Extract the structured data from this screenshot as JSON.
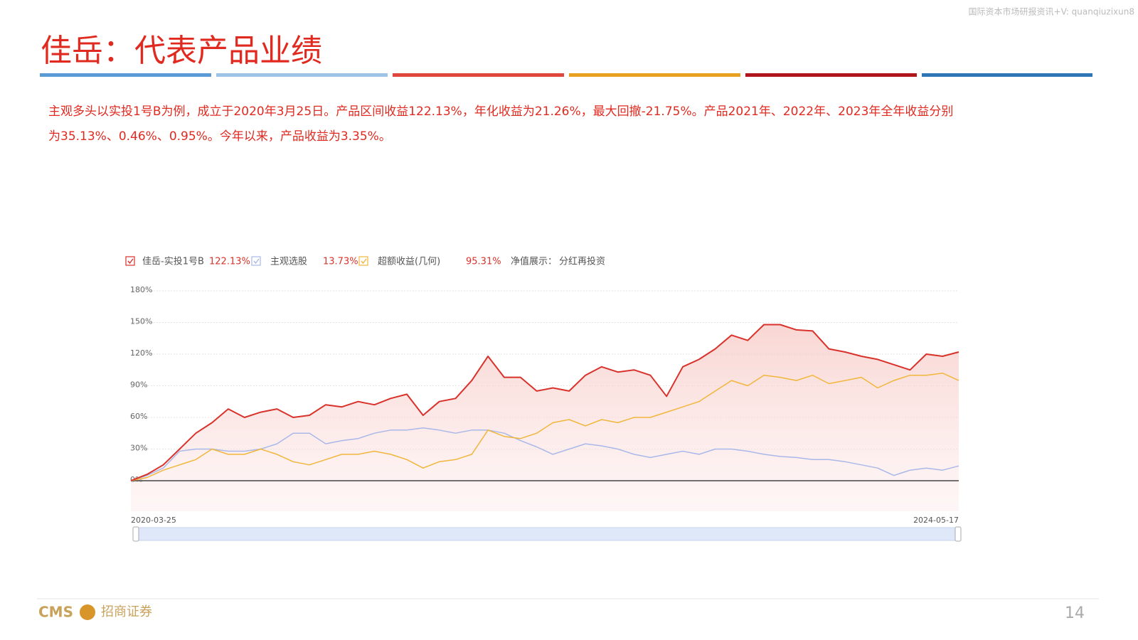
{
  "watermark": "国际资本市场研报资讯+V: quanqiuzixun8",
  "header": {
    "title": "佳岳：代表产品业绩"
  },
  "body": {
    "lines": [
      "主观多头以实投1号B为例，成立于2020年3月25日。产品区间收益122.13%，年化收益为21.26%，最大回撤-21.75%。产品2021年、2022年、2023年全年收益分别",
      "为35.13%、0.46%、0.95%。今年以来，产品收益为3.35%。"
    ]
  },
  "chart_data": {
    "type": "line",
    "categories": [
      "2020-03-25",
      null,
      null,
      null,
      null,
      null,
      null,
      null,
      null,
      null,
      null,
      null,
      null,
      null,
      null,
      null,
      null,
      null,
      null,
      null,
      null,
      null,
      null,
      null,
      null,
      null,
      null,
      null,
      null,
      null,
      null,
      null,
      null,
      null,
      null,
      null,
      null,
      null,
      null,
      null,
      null,
      null,
      null,
      null,
      null,
      null,
      null,
      null,
      null,
      null,
      null,
      "2024-05-17"
    ],
    "series": [
      {
        "name": "佳岳-实投1号B",
        "legend_label": "122.13%",
        "color": "#d9322b",
        "values": [
          0,
          6,
          15,
          30,
          45,
          55,
          68,
          60,
          65,
          68,
          60,
          62,
          72,
          70,
          75,
          72,
          78,
          82,
          62,
          75,
          78,
          95,
          118,
          98,
          98,
          85,
          88,
          85,
          100,
          108,
          103,
          105,
          100,
          80,
          108,
          115,
          125,
          138,
          133,
          148,
          148,
          143,
          142,
          125,
          122,
          118,
          115,
          110,
          105,
          120,
          118,
          122
        ]
      },
      {
        "name": "主观选股",
        "legend_label": "13.73%",
        "color": "#a9b8e8",
        "values": [
          0,
          5,
          12,
          28,
          30,
          30,
          28,
          28,
          30,
          35,
          45,
          45,
          35,
          38,
          40,
          45,
          48,
          48,
          50,
          48,
          45,
          48,
          48,
          45,
          38,
          32,
          25,
          30,
          35,
          33,
          30,
          25,
          22,
          25,
          28,
          25,
          30,
          30,
          28,
          25,
          23,
          22,
          20,
          20,
          18,
          15,
          12,
          5,
          10,
          12,
          10,
          14
        ]
      },
      {
        "name": "超额收益(几何)",
        "legend_label": "95.31%",
        "color": "#f2b63c",
        "values": [
          0,
          3,
          10,
          15,
          20,
          30,
          25,
          25,
          30,
          25,
          18,
          15,
          20,
          25,
          25,
          28,
          25,
          20,
          12,
          18,
          20,
          25,
          48,
          42,
          40,
          45,
          55,
          58,
          52,
          58,
          55,
          60,
          60,
          65,
          70,
          75,
          85,
          95,
          90,
          100,
          98,
          95,
          100,
          92,
          95,
          98,
          88,
          95,
          100,
          100,
          102,
          95
        ]
      }
    ],
    "legend_extra": {
      "label": "净值展示：",
      "value": "分红再投资"
    },
    "ylim": [
      -29,
      180
    ],
    "yticks": [
      {
        "value": 0,
        "label": "0%"
      },
      {
        "value": 30,
        "label": "30%"
      },
      {
        "value": 60,
        "label": "60%"
      },
      {
        "value": 90,
        "label": "90%"
      },
      {
        "value": 120,
        "label": "120%"
      },
      {
        "value": 150,
        "label": "150%"
      },
      {
        "value": 180,
        "label": "180%"
      }
    ],
    "grid": true
  },
  "footer": {
    "logo_en": "CMS",
    "logo_cn": "招商证券",
    "page": "14"
  }
}
